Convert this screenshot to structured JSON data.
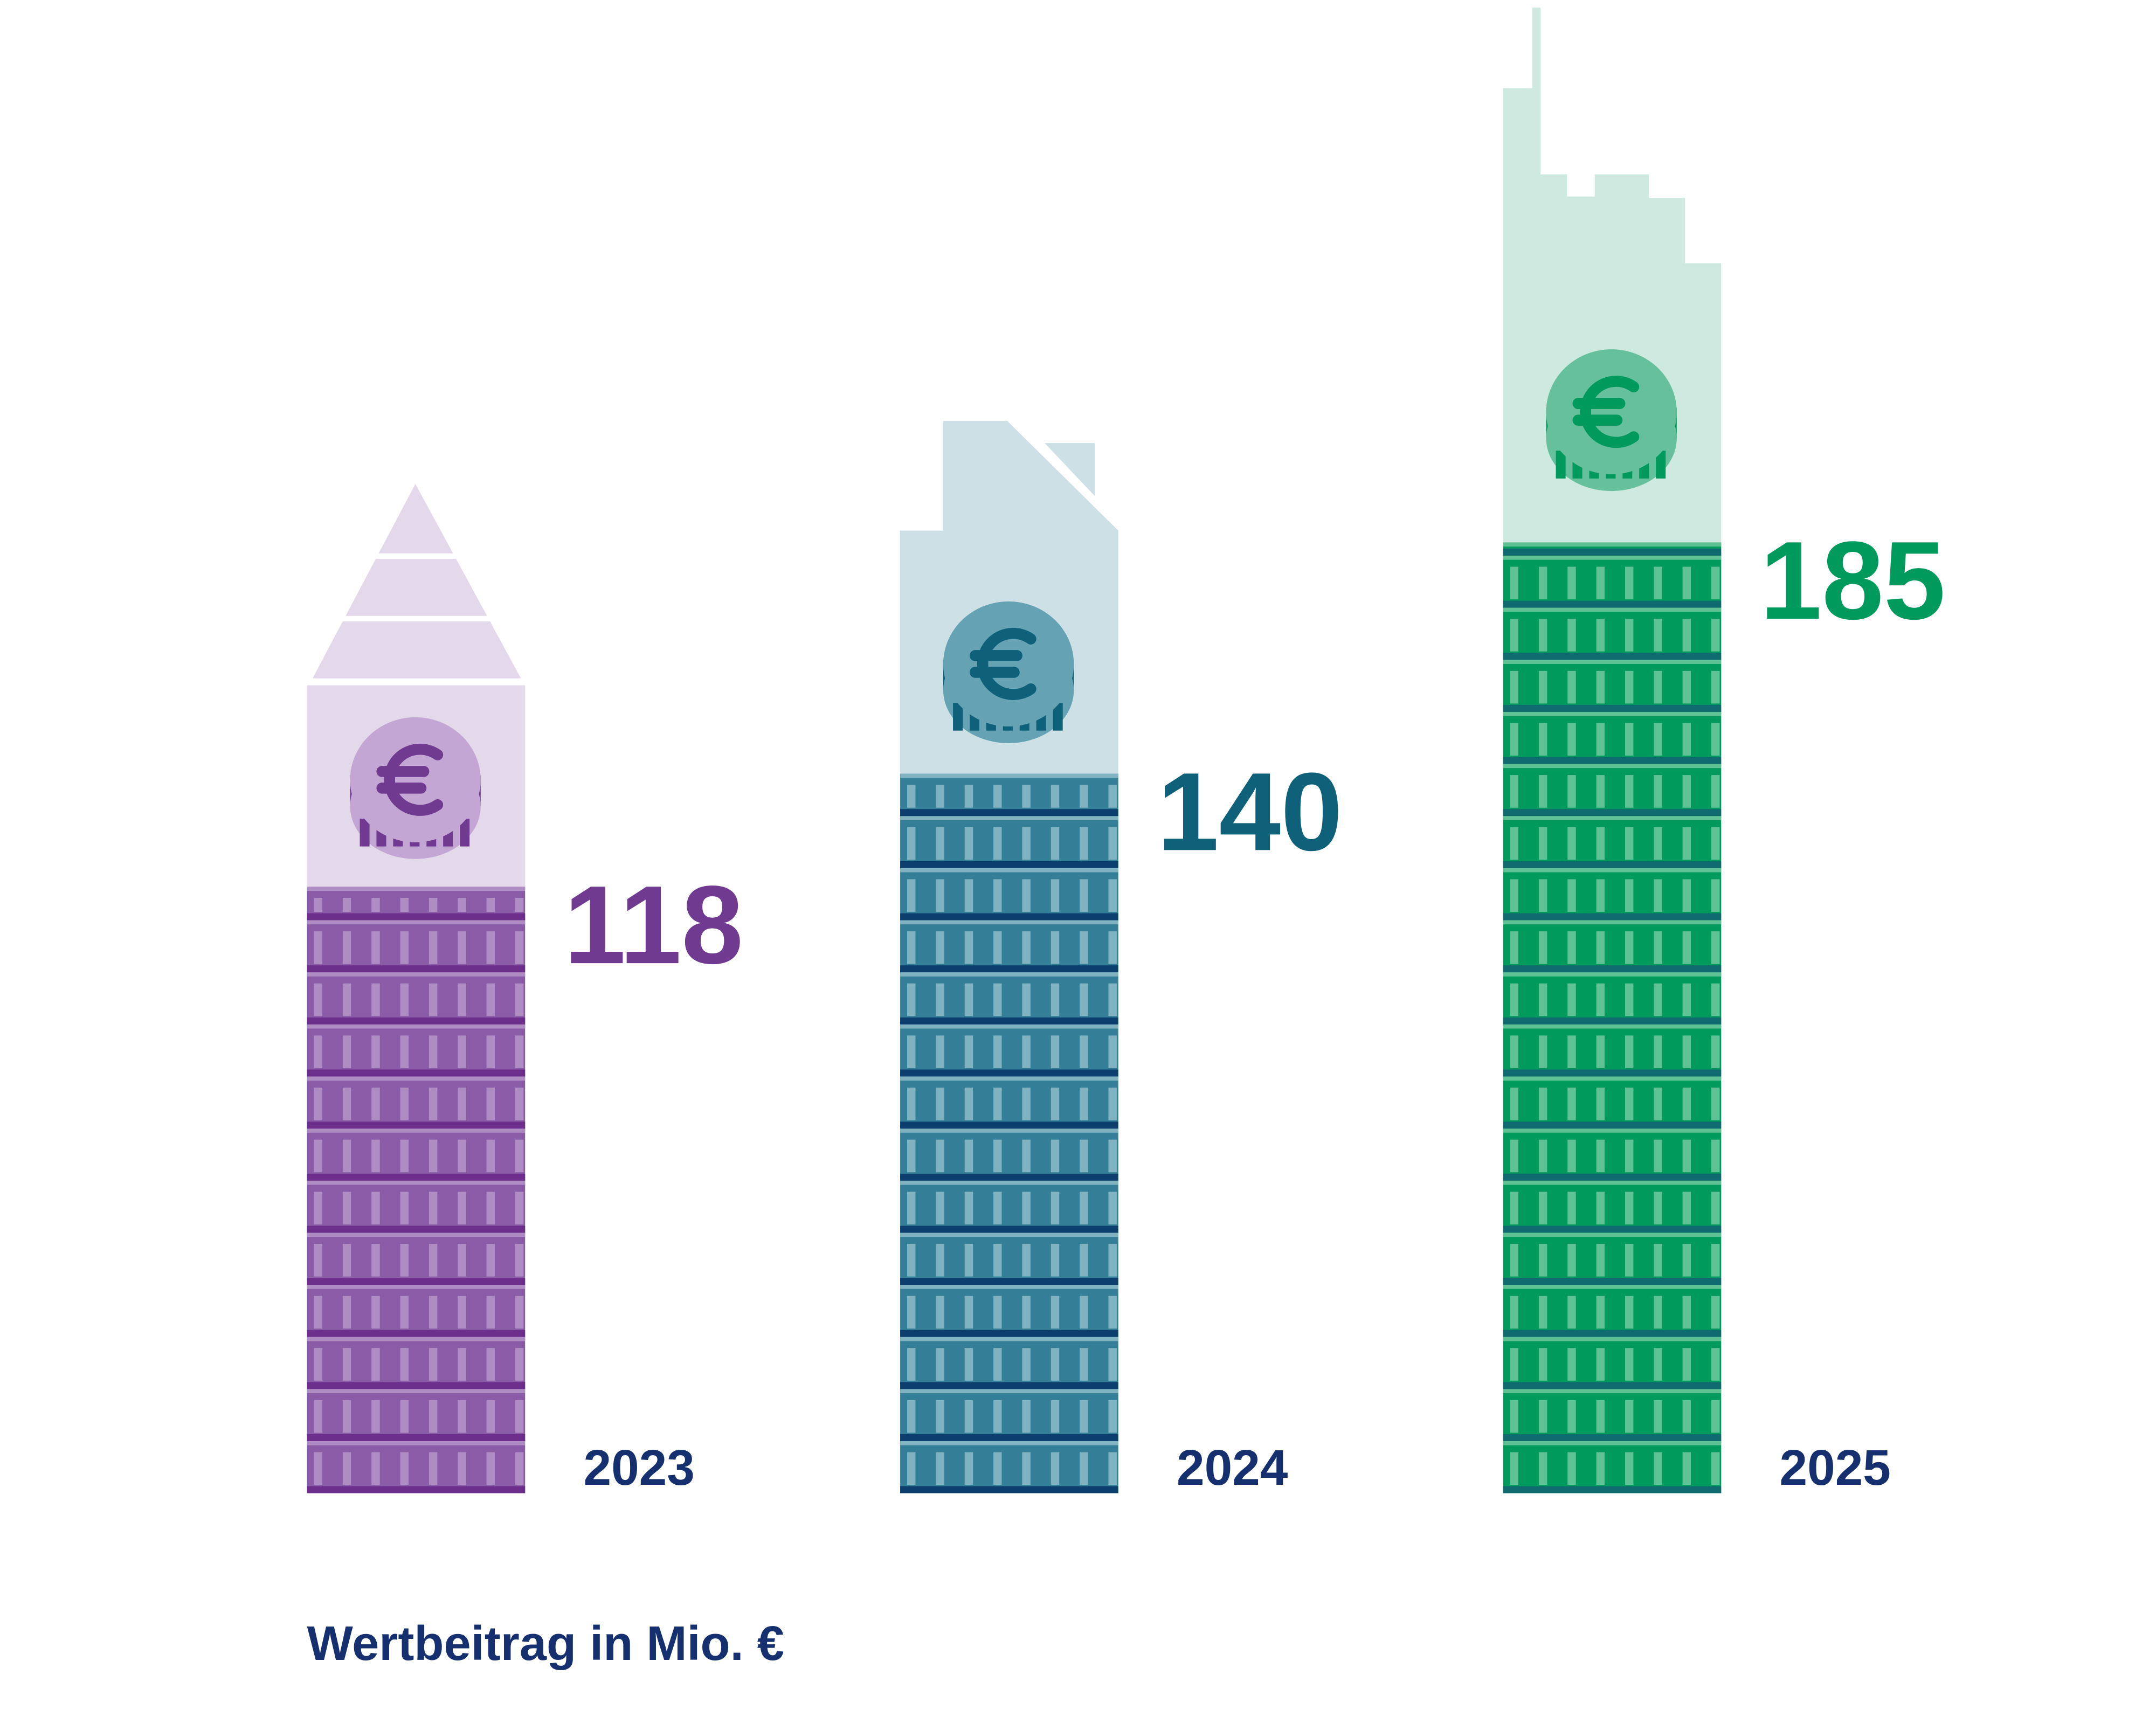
{
  "chart_data": {
    "type": "bar",
    "categories": [
      "2023",
      "2024",
      "2025"
    ],
    "values": [
      118,
      140,
      185
    ],
    "colors": [
      "#8a5ca8",
      "#347f97",
      "#009a5c"
    ],
    "label_colors": [
      "#703a91",
      "#0f6079",
      "#009a5c"
    ],
    "footer": "Wertbeitrag in Mio. €"
  }
}
